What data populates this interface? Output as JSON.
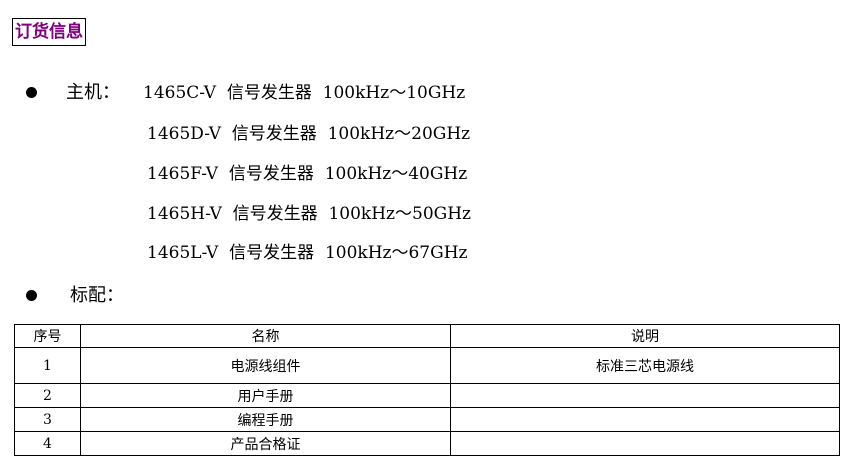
{
  "title": "订货信息",
  "host": {
    "label": "主机：",
    "models": [
      "1465C-V  信号发生器  100kHz～10GHz",
      "1465D-V  信号发生器  100kHz～20GHz",
      "1465F-V  信号发生器  100kHz～40GHz",
      "1465H-V  信号发生器  100kHz～50GHz",
      "1465L-V  信号发生器  100kHz～67GHz"
    ]
  },
  "standard": {
    "label": "标配：",
    "headers": [
      "序号",
      "名称",
      "说明"
    ],
    "rows": [
      [
        "1",
        "电源线组件",
        "标准三芯电源线"
      ],
      [
        "2",
        "用户手册",
        ""
      ],
      [
        "3",
        "编程手册",
        ""
      ],
      [
        "4",
        "产品合格证",
        ""
      ]
    ]
  },
  "colors": {
    "title": "#800080"
  }
}
